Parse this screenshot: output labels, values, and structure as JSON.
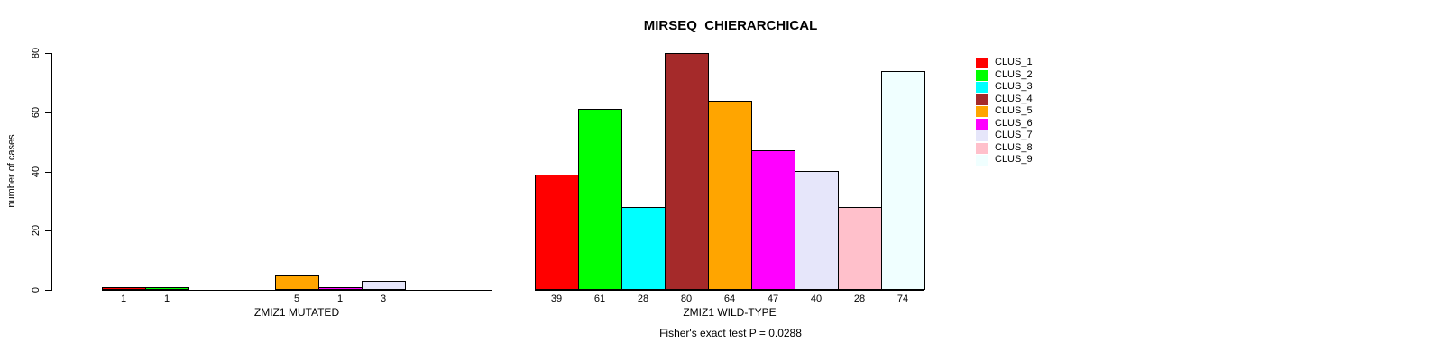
{
  "chart_data": {
    "type": "bar",
    "title": "MIRSEQ_CHIERARCHICAL",
    "ylabel": "number of cases",
    "xlabel": "",
    "ylim": [
      0,
      80
    ],
    "yticks": [
      0,
      20,
      40,
      60,
      80
    ],
    "grid": false,
    "legend_position": "top-right",
    "categories": [
      "CLUS_1",
      "CLUS_2",
      "CLUS_3",
      "CLUS_4",
      "CLUS_5",
      "CLUS_6",
      "CLUS_7",
      "CLUS_8",
      "CLUS_9"
    ],
    "colors": [
      "#FF0000",
      "#00FF00",
      "#00FFFF",
      "#A52A2A",
      "#FFA500",
      "#FF00FF",
      "#E6E6FA",
      "#FFC0CB",
      "#F0FFFF"
    ],
    "series": [
      {
        "name": "ZMIZ1 MUTATED",
        "values": [
          1,
          1,
          0,
          0,
          5,
          1,
          3,
          0,
          0
        ]
      },
      {
        "name": "ZMIZ1 WILD-TYPE",
        "values": [
          39,
          61,
          28,
          80,
          64,
          47,
          40,
          28,
          74
        ]
      }
    ],
    "zero_bars_unlabeled": true,
    "footnote": "Fisher's exact test P = 0.0288"
  }
}
